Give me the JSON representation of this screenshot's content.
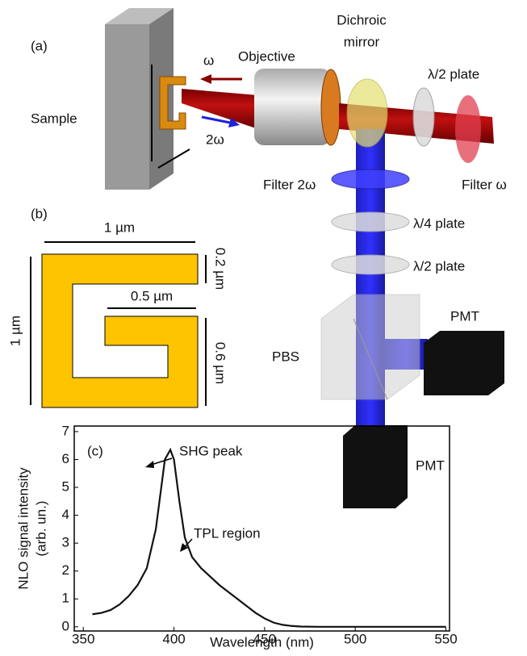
{
  "panel_a": {
    "label": "(a)",
    "sample": "Sample",
    "omega": "ω",
    "two_omega": "2ω",
    "objective": "Objective",
    "dichroic": [
      "Dichroic",
      "mirror"
    ],
    "half_plate_top": "λ/2 plate",
    "filter_omega": "Filter ω",
    "filter_2omega": "Filter 2ω",
    "quarter_plate": "λ/4 plate",
    "half_plate": "λ/2 plate",
    "pbs": "PBS",
    "pmt_right": "PMT",
    "pmt_bottom": "PMT"
  },
  "panel_b": {
    "label": "(b)",
    "width": "1 µm",
    "height": "1 µm",
    "gap": "0.2 µm",
    "arm": "0.5 µm",
    "lower": "0.6 µm"
  },
  "chart_data": {
    "type": "line",
    "panel_label": "(c)",
    "xlabel": "Wavelength (nm)",
    "ylabel": [
      "NLO signal intensity",
      "(arb. un.)"
    ],
    "x": [
      355,
      360,
      365,
      370,
      375,
      380,
      385,
      390,
      395,
      398,
      400,
      403,
      406,
      410,
      415,
      420,
      425,
      430,
      435,
      440,
      445,
      450,
      455,
      460,
      465,
      470,
      480,
      500,
      520,
      550
    ],
    "values": [
      0.45,
      0.5,
      0.6,
      0.8,
      1.1,
      1.5,
      2.1,
      3.5,
      6.0,
      6.35,
      6.0,
      4.5,
      3.2,
      2.5,
      2.1,
      1.8,
      1.5,
      1.25,
      1.0,
      0.75,
      0.5,
      0.3,
      0.15,
      0.07,
      0.03,
      0.01,
      0,
      0,
      0,
      0
    ],
    "color": "#111111",
    "xlim": [
      345,
      552
    ],
    "ylim": [
      -0.15,
      7.2
    ],
    "xticks": [
      350,
      400,
      450,
      500,
      550
    ],
    "yticks": [
      0,
      1,
      2,
      3,
      4,
      5,
      6,
      7
    ],
    "annotations": [
      "SHG peak",
      "TPL region"
    ]
  }
}
